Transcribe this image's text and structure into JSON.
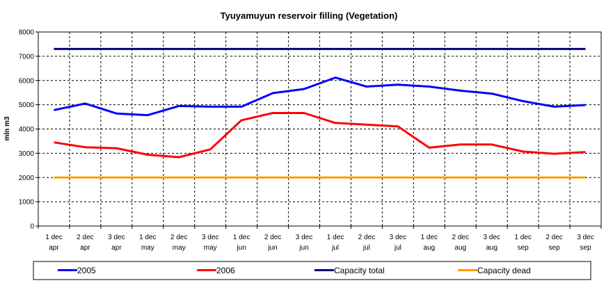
{
  "chart_data": {
    "type": "line",
    "title": "Tyuyamuyun reservoir filling (Vegetation)",
    "xlabel": "",
    "ylabel": "mln m3",
    "ylim": [
      0,
      8000
    ],
    "yticks": [
      0,
      1000,
      2000,
      3000,
      4000,
      5000,
      6000,
      7000,
      8000
    ],
    "grid": true,
    "legend_position": "bottom",
    "categories": [
      [
        "1 dec",
        "apr"
      ],
      [
        "2 dec",
        "apr"
      ],
      [
        "3 dec",
        "apr"
      ],
      [
        "1 dec",
        "may"
      ],
      [
        "2 dec",
        "may"
      ],
      [
        "3 dec",
        "may"
      ],
      [
        "1 dec",
        "jun"
      ],
      [
        "2 dec",
        "jun"
      ],
      [
        "3 dec",
        "jun"
      ],
      [
        "1 dec",
        "jul"
      ],
      [
        "2 dec",
        "jul"
      ],
      [
        "3 dec",
        "jul"
      ],
      [
        "1 dec",
        "aug"
      ],
      [
        "2 dec",
        "aug"
      ],
      [
        "3 dec",
        "aug"
      ],
      [
        "1 dec",
        "sep"
      ],
      [
        "2 dec",
        "sep"
      ],
      [
        "3 dec",
        "sep"
      ]
    ],
    "series": [
      {
        "name": "2005",
        "color": "#0000ff",
        "values": [
          4780,
          5050,
          4640,
          4570,
          4950,
          4920,
          4920,
          5480,
          5650,
          6120,
          5750,
          5830,
          5750,
          5580,
          5460,
          5150,
          4920,
          4990
        ]
      },
      {
        "name": "2006",
        "color": "#ff0000",
        "values": [
          3450,
          3250,
          3210,
          2940,
          2840,
          3160,
          4360,
          4660,
          4660,
          4250,
          4180,
          4110,
          3230,
          3360,
          3360,
          3070,
          2980,
          3050
        ]
      },
      {
        "name": "Capacity total",
        "color": "#000080",
        "values": [
          7300,
          7300,
          7300,
          7300,
          7300,
          7300,
          7300,
          7300,
          7300,
          7300,
          7300,
          7300,
          7300,
          7300,
          7300,
          7300,
          7300,
          7300
        ]
      },
      {
        "name": "Capacity dead",
        "color": "#ff9900",
        "values": [
          2000,
          2000,
          2000,
          2000,
          2000,
          2000,
          2000,
          2000,
          2000,
          2000,
          2000,
          2000,
          2000,
          2000,
          2000,
          2000,
          2000,
          2000
        ]
      }
    ]
  }
}
